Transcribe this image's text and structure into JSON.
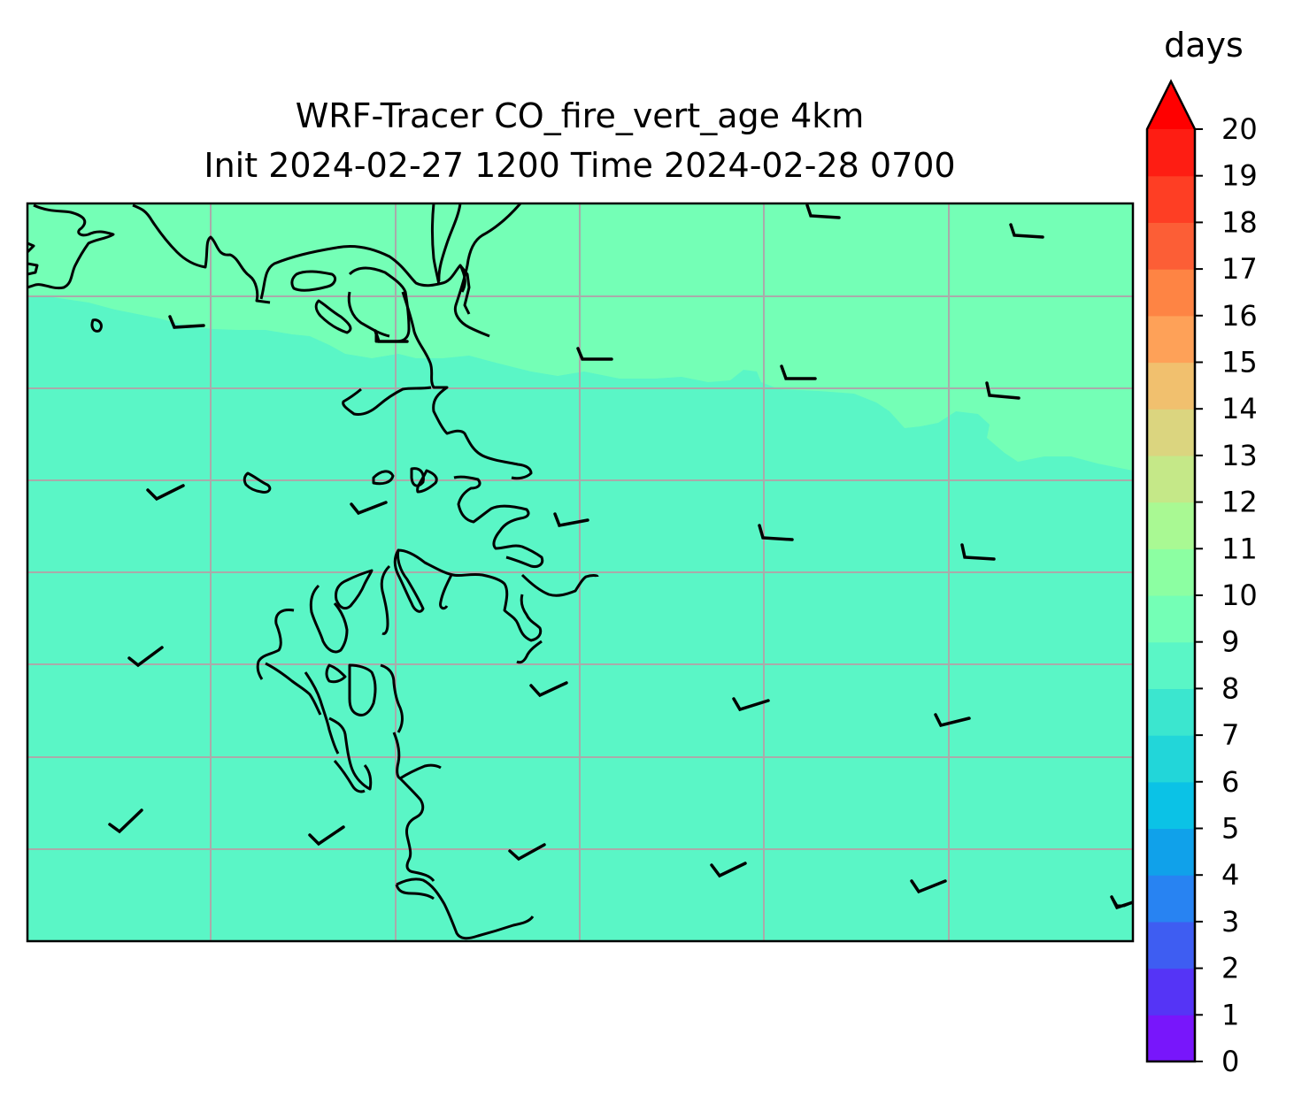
{
  "title_line1": "WRF-Tracer CO_fire_vert_age 4km",
  "title_line2": "Init 2024-02-27 1200 Time 2024-02-28 0700",
  "colorbar": {
    "unit": "days",
    "min": 0,
    "max": 20,
    "extend": "max",
    "ticks": [
      "0",
      "1",
      "2",
      "3",
      "4",
      "5",
      "6",
      "7",
      "8",
      "9",
      "10",
      "11",
      "12",
      "13",
      "14",
      "15",
      "16",
      "17",
      "18",
      "19",
      "20"
    ],
    "colors": [
      "#7816fb",
      "#5534f6",
      "#3e5df2",
      "#2883f2",
      "#10a1ea",
      "#0bc2e6",
      "#22d6d9",
      "#3be6cf",
      "#5af6c6",
      "#74ffb6",
      "#8cffa2",
      "#a9f993",
      "#c5e888",
      "#dbd57f",
      "#f1c06e",
      "#fea158",
      "#fe8444",
      "#fc5e36",
      "#fe3e24",
      "#fe1d13"
    ],
    "extend_color": "#ff0000"
  },
  "map": {
    "field_values": {
      "north_band": 9.3,
      "main": 8.5
    },
    "field_colors": {
      "north_band": "#74ffb6",
      "main": "#5af6c6"
    },
    "gridlines": true,
    "gridline_color": "#aaaaaa",
    "coastline_color": "#000000"
  }
}
